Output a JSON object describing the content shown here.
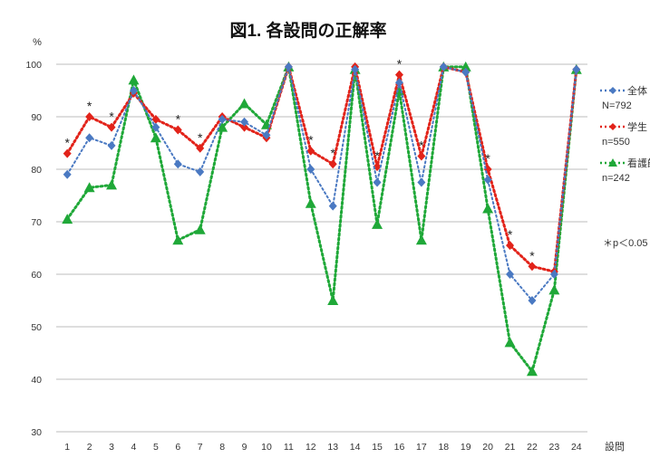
{
  "chart_data": {
    "type": "line",
    "title": "図1. 各設問の正解率",
    "ylabel": "%",
    "xlabel": "設問",
    "ylim": [
      30,
      100
    ],
    "yticks": [
      30,
      40,
      50,
      60,
      70,
      80,
      90,
      100
    ],
    "grid": true,
    "legend_position": "right",
    "x": [
      1,
      2,
      3,
      4,
      5,
      6,
      7,
      8,
      9,
      10,
      11,
      12,
      13,
      14,
      15,
      16,
      17,
      18,
      19,
      20,
      21,
      22,
      23,
      24
    ],
    "series": [
      {
        "name": "全体",
        "n_label": "N=792",
        "color": "#4a79c2",
        "marker": "diamond",
        "values": [
          79,
          86,
          84.5,
          95,
          88,
          81,
          79.5,
          89.5,
          89,
          86.5,
          99.5,
          80,
          73,
          99,
          77.5,
          96.5,
          77.5,
          99.5,
          98.5,
          78,
          60,
          55,
          60,
          99
        ]
      },
      {
        "name": "学生",
        "n_label": "n=550",
        "color": "#e2231a",
        "marker": "diamond",
        "values": [
          83,
          90,
          88,
          94.5,
          89.5,
          87.5,
          84,
          90,
          88,
          86,
          99.5,
          83.5,
          81,
          99.5,
          80.5,
          98,
          82.5,
          99.5,
          98.5,
          80,
          65.5,
          61.5,
          60.5,
          99
        ]
      },
      {
        "name": "看護師",
        "n_label": "n=242",
        "color": "#1fa838",
        "marker": "triangle",
        "values": [
          70.5,
          76.5,
          77,
          97,
          86,
          66.5,
          68.5,
          88,
          92.5,
          88.5,
          99.5,
          73.5,
          55,
          99,
          69.5,
          95,
          66.5,
          99.5,
          99.5,
          72.5,
          47,
          41.5,
          57,
          99
        ]
      }
    ],
    "significant_markers": [
      1,
      2,
      3,
      6,
      7,
      12,
      13,
      15,
      16,
      17,
      20,
      21,
      22
    ],
    "significance_note": "＊p＜0.05"
  }
}
